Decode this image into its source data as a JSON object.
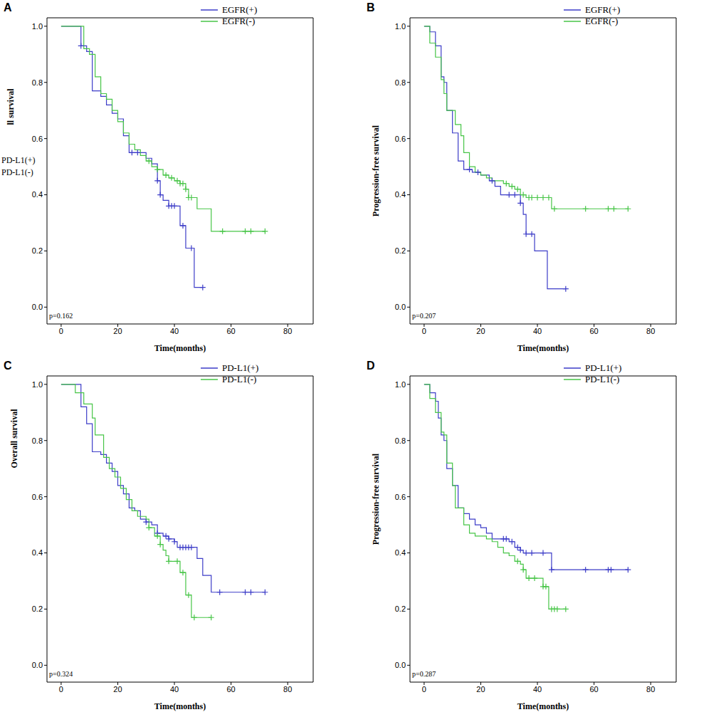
{
  "chart_data": [
    {
      "type": "line",
      "panel_label": "A",
      "x_label": "Time(months)",
      "y_label": "ll survival",
      "p_value_text": "p=0.162",
      "annotations": [
        "PD-L1(+)",
        "PD-L1(-)"
      ],
      "legend": "top",
      "line_style": "step",
      "xlim": [
        -5,
        89
      ],
      "xticks": [
        0,
        20,
        40,
        60,
        80
      ],
      "ylim": [
        -0.06,
        1.03
      ],
      "yticks": [
        {
          "value": 0,
          "label": "0.0"
        },
        {
          "value": 0.2,
          "label": "0.2"
        },
        {
          "value": 0.4,
          "label": "0.4"
        },
        {
          "value": 0.6,
          "label": "0.6"
        },
        {
          "value": 0.8,
          "label": "0.8"
        },
        {
          "value": 1,
          "label": "1.0"
        }
      ],
      "series": [
        {
          "name": "EGFR(+)",
          "color": "#3d3dc8",
          "marker": "plus",
          "x": [
            0,
            7,
            9,
            11,
            14,
            16,
            18,
            20,
            22,
            24,
            30,
            32,
            34,
            35,
            36,
            38,
            42,
            44,
            47,
            50
          ],
          "values": [
            1,
            0.93,
            0.91,
            0.77,
            0.75,
            0.72,
            0.69,
            0.67,
            0.61,
            0.55,
            0.53,
            0.51,
            0.45,
            0.4,
            0.38,
            0.36,
            0.29,
            0.21,
            0.07,
            0.07
          ],
          "censored": {
            "x": [
              7,
              25,
              27,
              34,
              35,
              38,
              39,
              40,
              43,
              46,
              50
            ],
            "values": [
              0.93,
              0.55,
              0.55,
              0.45,
              0.4,
              0.36,
              0.36,
              0.36,
              0.29,
              0.21,
              0.07
            ]
          }
        },
        {
          "name": "EGFR(-)",
          "color": "#47c547",
          "marker": "plus",
          "x": [
            0,
            8,
            10,
            12,
            14,
            16,
            18,
            20,
            22,
            24,
            26,
            28,
            30,
            32,
            34,
            36,
            38,
            40,
            42,
            44,
            45,
            48,
            53,
            72
          ],
          "values": [
            1,
            0.92,
            0.9,
            0.82,
            0.76,
            0.74,
            0.7,
            0.66,
            0.62,
            0.58,
            0.56,
            0.54,
            0.52,
            0.5,
            0.49,
            0.47,
            0.46,
            0.45,
            0.44,
            0.42,
            0.39,
            0.35,
            0.27,
            0.27
          ],
          "censored": {
            "x": [
              31,
              34,
              37,
              39,
              41,
              42,
              43,
              44,
              45,
              46,
              57,
              65,
              67,
              72
            ],
            "values": [
              0.52,
              0.49,
              0.47,
              0.46,
              0.45,
              0.44,
              0.44,
              0.42,
              0.39,
              0.39,
              0.27,
              0.27,
              0.27,
              0.27
            ]
          }
        }
      ]
    },
    {
      "type": "line",
      "panel_label": "B",
      "x_label": "Time(months)",
      "y_label": "Progression-free survival",
      "p_value_text": "p=0.207",
      "legend": "top",
      "line_style": "step",
      "xlim": [
        -5,
        89
      ],
      "xticks": [
        0,
        20,
        40,
        60,
        80
      ],
      "ylim": [
        -0.06,
        1.03
      ],
      "yticks": [
        {
          "value": 0,
          "label": "0.0"
        },
        {
          "value": 0.2,
          "label": "0.2"
        },
        {
          "value": 0.4,
          "label": "0.4"
        },
        {
          "value": 0.6,
          "label": "0.6"
        },
        {
          "value": 0.8,
          "label": "0.8"
        },
        {
          "value": 1,
          "label": "1.0"
        }
      ],
      "series": [
        {
          "name": "EGFR(+)",
          "color": "#3d3dc8",
          "marker": "plus",
          "x": [
            0,
            2,
            4,
            6,
            7,
            8,
            10,
            12,
            14,
            17,
            20,
            23,
            25,
            27,
            34,
            35,
            36,
            39,
            43.5,
            50
          ],
          "values": [
            1,
            0.98,
            0.93,
            0.82,
            0.8,
            0.7,
            0.62,
            0.52,
            0.49,
            0.48,
            0.47,
            0.45,
            0.43,
            0.4,
            0.37,
            0.33,
            0.26,
            0.2,
            0.065,
            0.065
          ],
          "censored": {
            "x": [
              16,
              19,
              24,
              30,
              32,
              34,
              36,
              38,
              50
            ],
            "values": [
              0.49,
              0.48,
              0.45,
              0.4,
              0.4,
              0.37,
              0.26,
              0.26,
              0.065
            ]
          }
        },
        {
          "name": "EGFR(-)",
          "color": "#47c547",
          "marker": "plus",
          "x": [
            0,
            2,
            4,
            6,
            7,
            8,
            11,
            13,
            14,
            16,
            18,
            20,
            22,
            24,
            28,
            30,
            32,
            34,
            36,
            45,
            72
          ],
          "values": [
            1,
            0.94,
            0.89,
            0.81,
            0.76,
            0.7,
            0.65,
            0.61,
            0.55,
            0.5,
            0.48,
            0.47,
            0.46,
            0.45,
            0.44,
            0.43,
            0.42,
            0.4,
            0.39,
            0.35,
            0.35
          ],
          "censored": {
            "x": [
              29,
              31,
              33,
              35,
              37,
              38,
              40,
              42,
              44,
              46,
              57,
              65,
              67,
              72
            ],
            "values": [
              0.44,
              0.43,
              0.42,
              0.4,
              0.39,
              0.39,
              0.39,
              0.39,
              0.39,
              0.35,
              0.35,
              0.35,
              0.35,
              0.35
            ]
          }
        }
      ]
    },
    {
      "type": "line",
      "panel_label": "C",
      "x_label": "Time(months)",
      "y_label": "Overall survival",
      "p_value_text": "p=0.324",
      "legend": "top",
      "line_style": "step",
      "xlim": [
        -5,
        89
      ],
      "xticks": [
        0,
        20,
        40,
        60,
        80
      ],
      "ylim": [
        -0.06,
        1.03
      ],
      "yticks": [
        {
          "value": 0,
          "label": "0.0"
        },
        {
          "value": 0.2,
          "label": "0.2"
        },
        {
          "value": 0.4,
          "label": "0.4"
        },
        {
          "value": 0.6,
          "label": "0.6"
        },
        {
          "value": 0.8,
          "label": "0.8"
        },
        {
          "value": 1,
          "label": "1.0"
        }
      ],
      "series": [
        {
          "name": "PD-L1(+)",
          "color": "#3d3dc8",
          "marker": "plus",
          "x": [
            0,
            7,
            9,
            11,
            14,
            16,
            18,
            20,
            22,
            24,
            26,
            28,
            30,
            32,
            34,
            36,
            38,
            40,
            41,
            48,
            50,
            53,
            72
          ],
          "values": [
            1,
            0.92,
            0.86,
            0.76,
            0.75,
            0.72,
            0.69,
            0.64,
            0.61,
            0.56,
            0.55,
            0.52,
            0.51,
            0.5,
            0.47,
            0.46,
            0.45,
            0.44,
            0.42,
            0.38,
            0.32,
            0.26,
            0.26
          ],
          "censored": {
            "x": [
              30,
              34,
              37,
              38,
              40,
              42,
              43,
              44,
              45,
              46,
              56,
              65,
              67,
              72
            ],
            "values": [
              0.51,
              0.47,
              0.46,
              0.45,
              0.44,
              0.42,
              0.42,
              0.42,
              0.42,
              0.42,
              0.26,
              0.26,
              0.26,
              0.26
            ]
          }
        },
        {
          "name": "PD-L1(-)",
          "color": "#47c547",
          "marker": "plus",
          "x": [
            0,
            5,
            8,
            11,
            12,
            15,
            17,
            19,
            21,
            23,
            25,
            27,
            30,
            31,
            33,
            35,
            36,
            37,
            38,
            42,
            44,
            46,
            53
          ],
          "values": [
            1,
            0.97,
            0.93,
            0.88,
            0.82,
            0.74,
            0.7,
            0.67,
            0.63,
            0.59,
            0.55,
            0.53,
            0.52,
            0.49,
            0.46,
            0.43,
            0.41,
            0.39,
            0.37,
            0.33,
            0.25,
            0.17,
            0.17
          ],
          "censored": {
            "x": [
              31,
              34,
              35,
              38,
              41,
              43,
              45,
              47,
              53
            ],
            "values": [
              0.49,
              0.46,
              0.43,
              0.37,
              0.37,
              0.33,
              0.25,
              0.17,
              0.17
            ]
          }
        }
      ]
    },
    {
      "type": "line",
      "panel_label": "D",
      "x_label": "Time(months)",
      "y_label": "Progression-free survival",
      "p_value_text": "p=0.287",
      "legend": "top",
      "line_style": "step",
      "xlim": [
        -5,
        89
      ],
      "xticks": [
        0,
        20,
        40,
        60,
        80
      ],
      "ylim": [
        -0.06,
        1.03
      ],
      "yticks": [
        {
          "value": 0,
          "label": "0.0"
        },
        {
          "value": 0.2,
          "label": "0.2"
        },
        {
          "value": 0.4,
          "label": "0.4"
        },
        {
          "value": 0.6,
          "label": "0.6"
        },
        {
          "value": 0.8,
          "label": "0.8"
        },
        {
          "value": 1,
          "label": "1.0"
        }
      ],
      "series": [
        {
          "name": "PD-L1(+)",
          "color": "#3d3dc8",
          "marker": "plus",
          "x": [
            0,
            2,
            4,
            5,
            6,
            7,
            8,
            10,
            12,
            14,
            16,
            18,
            20,
            22,
            24,
            30,
            32,
            34,
            35,
            45,
            72
          ],
          "values": [
            1,
            0.97,
            0.94,
            0.88,
            0.82,
            0.8,
            0.7,
            0.64,
            0.56,
            0.54,
            0.52,
            0.5,
            0.49,
            0.47,
            0.45,
            0.44,
            0.42,
            0.41,
            0.4,
            0.34,
            0.34
          ],
          "censored": {
            "x": [
              28,
              29,
              31,
              33,
              34,
              36,
              38,
              42,
              45,
              57,
              65,
              66,
              72
            ],
            "values": [
              0.45,
              0.45,
              0.44,
              0.42,
              0.41,
              0.4,
              0.4,
              0.4,
              0.34,
              0.34,
              0.34,
              0.34,
              0.34
            ]
          }
        },
        {
          "name": "PD-L1(-)",
          "color": "#47c547",
          "marker": "plus",
          "x": [
            0,
            2,
            4,
            6,
            7,
            8,
            10,
            11,
            14,
            16,
            18,
            22,
            24,
            26,
            28,
            30,
            32,
            34,
            35,
            36,
            42,
            44,
            50
          ],
          "values": [
            1,
            0.95,
            0.9,
            0.83,
            0.82,
            0.72,
            0.64,
            0.56,
            0.5,
            0.47,
            0.46,
            0.45,
            0.44,
            0.42,
            0.4,
            0.39,
            0.37,
            0.36,
            0.34,
            0.31,
            0.28,
            0.2,
            0.2
          ],
          "censored": {
            "x": [
              33,
              35,
              37,
              39,
              42,
              43,
              45,
              46,
              47,
              50
            ],
            "values": [
              0.37,
              0.34,
              0.31,
              0.31,
              0.28,
              0.28,
              0.2,
              0.2,
              0.2,
              0.2
            ]
          }
        }
      ]
    }
  ]
}
